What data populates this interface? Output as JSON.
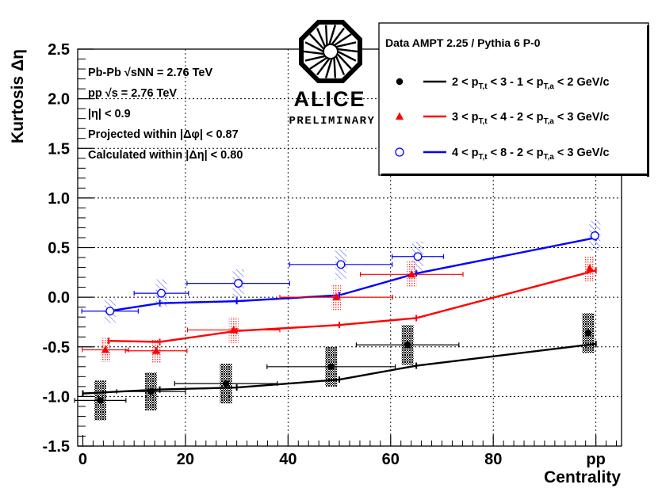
{
  "chart_data": {
    "type": "scatter",
    "title": "",
    "xlabel": "Centrality",
    "ylabel": "Kurtosis Δη",
    "xlim": [
      -1,
      105
    ],
    "ylim": [
      -1.5,
      2.5
    ],
    "x_ticks": [
      "0",
      "20",
      "40",
      "60",
      "80",
      "pp"
    ],
    "x_tick_values": [
      0,
      20,
      40,
      60,
      80,
      100
    ],
    "y_ticks": [
      "2.5",
      "2.0",
      "1.5",
      "1.0",
      "0.5",
      "0.0",
      "-0.5",
      "-1.0",
      "-1.5"
    ],
    "y_tick_values": [
      2.5,
      2.0,
      1.5,
      1.0,
      0.5,
      0.0,
      -0.5,
      -1.0,
      -1.5
    ],
    "grid": true,
    "info_lines": [
      "Pb-Pb √sNN = 2.76 TeV",
      "pp √s = 2.76 TeV",
      "|η| < 0.9",
      "Projected within |Δφ| < 0.87",
      "Calculated within |Δη| < 0.80"
    ],
    "logo": {
      "name": "ALICE",
      "subtitle": "PRELIMINARY"
    },
    "legend_header": "Data  AMPT 2.25 / Pythia 6 P-0",
    "legend_position": "top-right",
    "series": [
      {
        "name": "2 < pT,t < 3 - 1 < pT,a < 2  GeV/c",
        "label_parts": [
          "2 < p",
          "T,t",
          " < 3 - 1 < p",
          "T,a",
          " < 2  GeV/c"
        ],
        "color": "#000000",
        "marker": "filled-circle",
        "points": [
          {
            "x": 3.4,
            "y": -1.04,
            "xerr": 5,
            "sys": 0.2
          },
          {
            "x": 13.3,
            "y": -0.95,
            "xerr": 6.7,
            "sys": 0.19
          },
          {
            "x": 27.9,
            "y": -0.87,
            "xerr": 10,
            "sys": 0.2
          },
          {
            "x": 48.4,
            "y": -0.7,
            "xerr": 12.5,
            "sys": 0.2
          },
          {
            "x": 63.3,
            "y": -0.48,
            "xerr": 10,
            "sys": 0.2
          },
          {
            "x": 98.5,
            "y": -0.36,
            "xerr": 0,
            "sys": 0.2
          }
        ],
        "model": [
          {
            "x": 0,
            "y": -0.97
          },
          {
            "x": 15,
            "y": -0.93
          },
          {
            "x": 30,
            "y": -0.91
          },
          {
            "x": 50,
            "y": -0.83
          },
          {
            "x": 65,
            "y": -0.69
          },
          {
            "x": 100,
            "y": -0.47
          }
        ]
      },
      {
        "name": "3 < pT,t < 4 - 2 < pT,a < 3  GeV/c",
        "label_parts": [
          "3 < p",
          "T,t",
          " < 4 - 2 < p",
          "T,a",
          " < 3  GeV/c"
        ],
        "color": "#ff0000",
        "marker": "filled-triangle",
        "points": [
          {
            "x": 4.4,
            "y": -0.53,
            "xerr": 4.5,
            "sys": 0.12
          },
          {
            "x": 14.3,
            "y": -0.54,
            "xerr": 6,
            "sys": 0.12
          },
          {
            "x": 29.4,
            "y": -0.33,
            "xerr": 9,
            "sys": 0.13
          },
          {
            "x": 49.4,
            "y": 0.0,
            "xerr": 11,
            "sys": 0.13
          },
          {
            "x": 64.1,
            "y": 0.23,
            "xerr": 10,
            "sys": 0.13
          },
          {
            "x": 98.8,
            "y": 0.29,
            "xerr": 0,
            "sys": 0.13
          }
        ],
        "model": [
          {
            "x": 5,
            "y": -0.44
          },
          {
            "x": 15,
            "y": -0.45
          },
          {
            "x": 30,
            "y": -0.34
          },
          {
            "x": 50,
            "y": -0.28
          },
          {
            "x": 65,
            "y": -0.21
          },
          {
            "x": 100,
            "y": 0.27
          }
        ]
      },
      {
        "name": "4 < pT,t < 8 - 2 < pT,a < 3  GeV/c",
        "label_parts": [
          "4 < p",
          "T,t",
          " < 8 - 2 < p",
          "T,a",
          " < 3  GeV/c"
        ],
        "color": "#0000ff",
        "marker": "open-circle",
        "points": [
          {
            "x": 5.3,
            "y": -0.14,
            "xerr": 5.5,
            "sys": 0.12
          },
          {
            "x": 15.3,
            "y": 0.04,
            "xerr": 5.3,
            "sys": 0.14
          },
          {
            "x": 30.3,
            "y": 0.14,
            "xerr": 10,
            "sys": 0.14
          },
          {
            "x": 50.3,
            "y": 0.33,
            "xerr": 10,
            "sys": 0.15
          },
          {
            "x": 65.3,
            "y": 0.41,
            "xerr": 5,
            "sys": 0.15
          },
          {
            "x": 99.8,
            "y": 0.62,
            "xerr": 0,
            "sys": 0.15
          }
        ],
        "model": [
          {
            "x": 5,
            "y": -0.14
          },
          {
            "x": 15,
            "y": -0.06
          },
          {
            "x": 30,
            "y": -0.04
          },
          {
            "x": 50,
            "y": 0.02
          },
          {
            "x": 65,
            "y": 0.24
          },
          {
            "x": 100,
            "y": 0.6
          }
        ]
      }
    ]
  }
}
